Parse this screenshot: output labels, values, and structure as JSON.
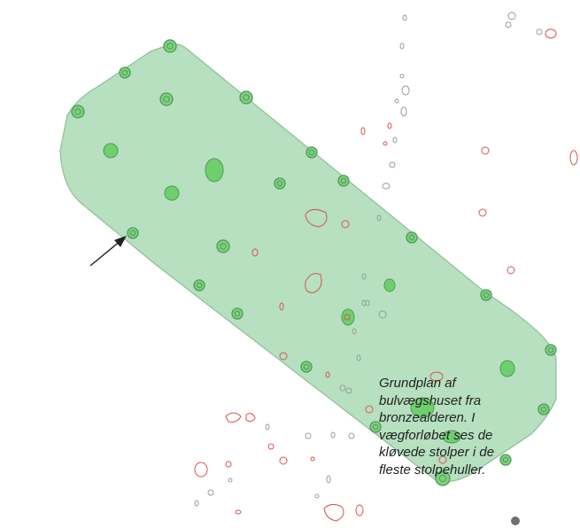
{
  "caption": {
    "text": "Grundplan af\nbulvægshuset fra\nbronzealderen. I\nvægforløbet ses de\nkløvede stolper i de\nfleste stolpehuller."
  },
  "colors": {
    "house_fill": "#b6e0bf",
    "house_stroke": "#8fbf97",
    "wall_post_ring": "#4f9a59",
    "wall_post_fill": "#7ed07f",
    "interior_post_fill": "#6fcf6f",
    "red_features": "#d9534f",
    "grey_features": "#9a9a9a",
    "arrow": "#222222",
    "dark_dot": "#707070"
  },
  "icons": {
    "pointer_arrow": "arrow-icon"
  }
}
